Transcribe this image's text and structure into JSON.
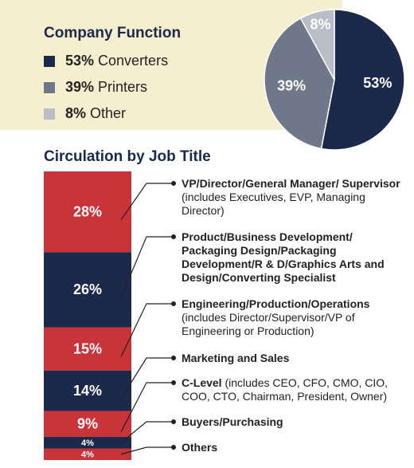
{
  "chart_data": [
    {
      "type": "pie",
      "title": "Company Function",
      "categories": [
        "Converters",
        "Printers",
        "Other"
      ],
      "values": [
        53,
        39,
        8
      ],
      "value_labels": [
        "53%",
        "39%",
        "8%"
      ],
      "colors": [
        "#1b2a4b",
        "#6e7889",
        "#b9bdc7"
      ]
    },
    {
      "type": "stacked_bar",
      "title": "Circulation by Job Title",
      "categories": [
        {
          "name": "VP/Director/General Manager/ Supervisor",
          "detail": "(includes Executives, EVP, Managing Director)"
        },
        {
          "name": "Product/Business Development/ Packaging Design/Packaging Development/R & D/Graphics Arts and Design/Converting Specialist"
        },
        {
          "name": "Engineering/Production/Operations",
          "detail": "(includes Director/Supervisor/VP of Engineering or Production)"
        },
        {
          "name": "Marketing and Sales"
        },
        {
          "name": "C-Level",
          "detail": "(includes CEO, CFO, CMO, CIO, COO, CTO, Chairman, President, Owner)"
        },
        {
          "name": "Buyers/Purchasing"
        },
        {
          "name": "Others"
        }
      ],
      "values": [
        28,
        26,
        15,
        14,
        9,
        4,
        4
      ],
      "value_labels": [
        "28%",
        "26%",
        "15%",
        "14%",
        "9%",
        "4%",
        "4%"
      ],
      "colors": [
        "#c8343a",
        "#1b2a4b",
        "#c8343a",
        "#1b2a4b",
        "#c8343a",
        "#1b2a4b",
        "#c8343a"
      ]
    }
  ]
}
